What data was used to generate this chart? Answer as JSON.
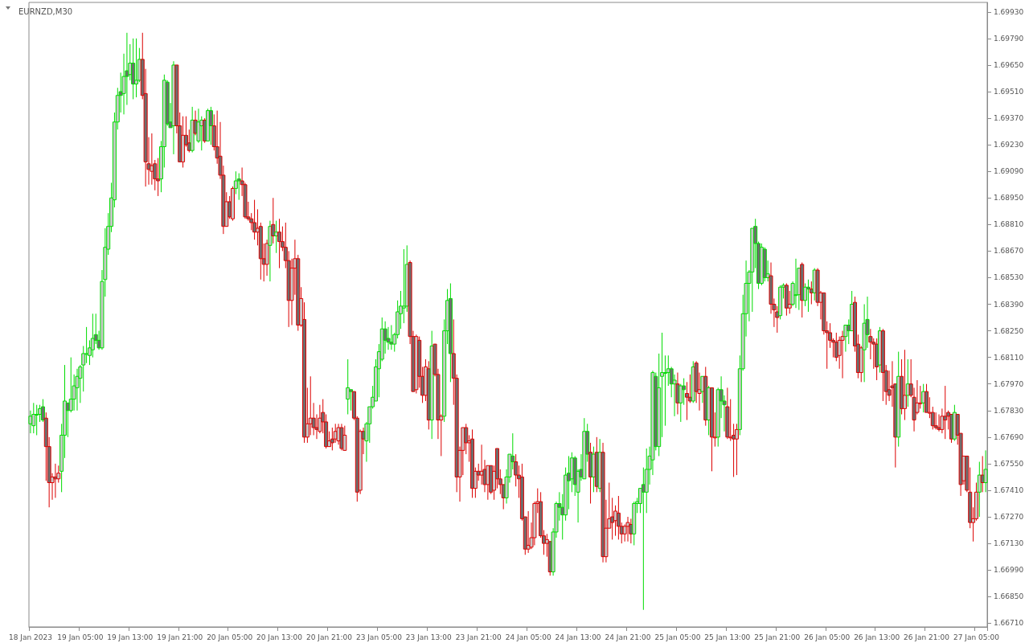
{
  "chart_data": {
    "type": "candlestick",
    "title": "EURNZD,M30",
    "categories": [
      "18 Jan 2023",
      null,
      null,
      null,
      null,
      null,
      null,
      null,
      null,
      null,
      null,
      null,
      null,
      null,
      null,
      null,
      "19 Jan 05:00",
      null,
      null,
      null,
      null,
      null,
      null,
      null,
      null,
      null,
      null,
      null,
      null,
      null,
      null,
      null,
      "19 Jan 13:00",
      null,
      null,
      null,
      null,
      null,
      null,
      null,
      null,
      null,
      null,
      null,
      null,
      null,
      null,
      null,
      "19 Jan 21:00",
      null,
      null,
      null,
      null,
      null,
      null,
      null,
      null,
      null,
      null,
      null,
      null,
      null,
      null,
      null,
      "20 Jan 05:00",
      null,
      null,
      null,
      null,
      null,
      null,
      null,
      null,
      null,
      null,
      null,
      null,
      null,
      null,
      null,
      "20 Jan 13:00",
      null,
      null,
      null,
      null,
      null,
      null,
      null,
      null,
      null,
      null,
      null,
      null,
      null,
      null,
      null,
      "20 Jan 21:00",
      null,
      null,
      null,
      null,
      null,
      null,
      null,
      null,
      null,
      null,
      null,
      null,
      null,
      null,
      null,
      "23 Jan 05:00",
      null,
      null,
      null,
      null,
      null,
      null,
      null,
      null,
      null,
      null,
      null,
      null,
      null,
      null,
      null,
      "23 Jan 13:00",
      null,
      null,
      null,
      null,
      null,
      null,
      null,
      null,
      null,
      null,
      null,
      null,
      null,
      null,
      null,
      "23 Jan 21:00",
      null,
      null,
      null,
      null,
      null,
      null,
      null,
      null,
      null,
      null,
      null,
      null,
      null,
      null,
      null,
      "24 Jan 05:00",
      null,
      null,
      null,
      null,
      null,
      null,
      null,
      null,
      null,
      null,
      null,
      null,
      null,
      null,
      null,
      "24 Jan 13:00",
      null,
      null,
      null,
      null,
      null,
      null,
      null,
      null,
      null,
      null,
      null,
      null,
      null,
      null,
      null,
      "24 Jan 21:00",
      null,
      null,
      null,
      null,
      null,
      null,
      null,
      null,
      null,
      null,
      null,
      null,
      null,
      null,
      null,
      "25 Jan 05:00",
      null,
      null,
      null,
      null,
      null,
      null,
      null,
      null,
      null,
      null,
      null,
      null,
      null,
      null,
      null,
      "25 Jan 13:00",
      null,
      null,
      null,
      null,
      null,
      null,
      null,
      null,
      null,
      null,
      null,
      null,
      null,
      null,
      null,
      "25 Jan 21:00",
      null,
      null,
      null,
      null,
      null,
      null,
      null,
      null,
      null,
      null,
      null,
      null,
      null,
      null,
      null,
      "26 Jan 05:00",
      null,
      null,
      null,
      null,
      null,
      null,
      null,
      null,
      null,
      null,
      null,
      null,
      null,
      null,
      null,
      "26 Jan 13:00",
      null,
      null,
      null,
      null,
      null,
      null,
      null,
      null,
      null,
      null,
      null,
      null,
      null,
      null,
      null,
      "26 Jan 21:00",
      null,
      null,
      null,
      null,
      null,
      null,
      null,
      null,
      null,
      null,
      null,
      null,
      null,
      null,
      null,
      "27 Jan 05:00",
      null,
      null,
      null
    ],
    "ylim": [
      1.6669,
      1.6998
    ],
    "yticks": [
      {
        "value": 1.6671,
        "label": "1.66710"
      },
      {
        "value": 1.6685,
        "label": "1.66850"
      },
      {
        "value": 1.6699,
        "label": "1.66990"
      },
      {
        "value": 1.6713,
        "label": "1.67130"
      },
      {
        "value": 1.6727,
        "label": "1.67270"
      },
      {
        "value": 1.6741,
        "label": "1.67410"
      },
      {
        "value": 1.6755,
        "label": "1.67550"
      },
      {
        "value": 1.6769,
        "label": "1.67690"
      },
      {
        "value": 1.6783,
        "label": "1.67830"
      },
      {
        "value": 1.6797,
        "label": "1.67970"
      },
      {
        "value": 1.6811,
        "label": "1.68110"
      },
      {
        "value": 1.6825,
        "label": "1.68250"
      },
      {
        "value": 1.6839,
        "label": "1.68390"
      },
      {
        "value": 1.6853,
        "label": "1.68530"
      },
      {
        "value": 1.6867,
        "label": "1.68670"
      },
      {
        "value": 1.6881,
        "label": "1.68810"
      },
      {
        "value": 1.6895,
        "label": "1.68950"
      },
      {
        "value": 1.6909,
        "label": "1.69090"
      },
      {
        "value": 1.6923,
        "label": "1.69230"
      },
      {
        "value": 1.6937,
        "label": "1.69370"
      },
      {
        "value": 1.6951,
        "label": "1.69510"
      },
      {
        "value": 1.6965,
        "label": "1.69650"
      },
      {
        "value": 1.6979,
        "label": "1.69790"
      },
      {
        "value": 1.6993,
        "label": "1.69930"
      }
    ],
    "ohlc": [
      [
        1.6776,
        1.6783,
        1.6771,
        1.678
      ],
      [
        1.6775,
        1.6787,
        1.6771,
        1.6781
      ],
      [
        1.6781,
        1.6786,
        1.677,
        1.6781
      ],
      [
        1.6781,
        1.6786,
        1.6777,
        1.6784
      ],
      [
        1.6785,
        1.6789,
        1.6777,
        1.6778
      ],
      [
        1.6779,
        1.6782,
        1.6746,
        1.6764
      ],
      [
        1.6764,
        1.6769,
        1.6732,
        1.6745
      ],
      [
        1.6745,
        1.675,
        1.6736,
        1.6748
      ],
      [
        1.6748,
        1.6755,
        1.6737,
        1.6747
      ],
      [
        1.6747,
        1.6754,
        1.6745,
        1.675
      ],
      [
        1.6751,
        1.6776,
        1.674,
        1.677
      ],
      [
        1.677,
        1.6807,
        1.6758,
        1.6788
      ],
      [
        1.6787,
        1.6787,
        1.6769,
        1.6783
      ],
      [
        1.6783,
        1.6811,
        1.6782,
        1.6789
      ],
      [
        1.6789,
        1.6802,
        1.6783,
        1.6796
      ],
      [
        1.6795,
        1.6805,
        1.6783,
        1.6801
      ],
      [
        1.68,
        1.6807,
        1.6787,
        1.6806
      ],
      [
        1.6807,
        1.6817,
        1.6793,
        1.6813
      ],
      [
        1.6813,
        1.6827,
        1.6808,
        1.6813
      ],
      [
        1.6812,
        1.682,
        1.6807,
        1.6816
      ],
      [
        1.6815,
        1.6834,
        1.6811,
        1.6821
      ],
      [
        1.6823,
        1.6834,
        1.6818,
        1.682
      ],
      [
        1.682,
        1.6825,
        1.6815,
        1.6816
      ],
      [
        1.6816,
        1.6857,
        1.6815,
        1.6851
      ],
      [
        1.6852,
        1.6879,
        1.6843,
        1.6869
      ],
      [
        1.6868,
        1.6887,
        1.6865,
        1.688
      ],
      [
        1.688,
        1.6903,
        1.6877,
        1.6895
      ],
      [
        1.6894,
        1.694,
        1.689,
        1.6935
      ],
      [
        1.6935,
        1.6953,
        1.6931,
        1.6949
      ],
      [
        1.6951,
        1.6961,
        1.694,
        1.6949
      ],
      [
        1.695,
        1.6971,
        1.6939,
        1.6959
      ],
      [
        1.6962,
        1.6982,
        1.6944,
        1.6959
      ],
      [
        1.696,
        1.6976,
        1.6957,
        1.6966
      ],
      [
        1.6966,
        1.6979,
        1.6947,
        1.6955
      ],
      [
        1.6955,
        1.6979,
        1.6948,
        1.6957
      ],
      [
        1.6957,
        1.6974,
        1.6956,
        1.6968
      ],
      [
        1.6968,
        1.6982,
        1.6947,
        1.6949
      ],
      [
        1.695,
        1.6963,
        1.6901,
        1.6914
      ],
      [
        1.6913,
        1.6927,
        1.6902,
        1.691
      ],
      [
        1.6909,
        1.6929,
        1.6902,
        1.6912
      ],
      [
        1.6913,
        1.6915,
        1.6899,
        1.6905
      ],
      [
        1.6905,
        1.6916,
        1.6896,
        1.6904
      ],
      [
        1.6905,
        1.6925,
        1.6898,
        1.6922
      ],
      [
        1.6922,
        1.696,
        1.6911,
        1.6957
      ],
      [
        1.6956,
        1.6957,
        1.6933,
        1.6934
      ],
      [
        1.6935,
        1.6945,
        1.6932,
        1.6932
      ],
      [
        1.6933,
        1.6967,
        1.6918,
        1.6965
      ],
      [
        1.6965,
        1.6965,
        1.6929,
        1.6933
      ],
      [
        1.6933,
        1.694,
        1.6914,
        1.6914
      ],
      [
        1.6914,
        1.6938,
        1.6911,
        1.6928
      ],
      [
        1.6928,
        1.6938,
        1.6922,
        1.6923
      ],
      [
        1.6924,
        1.6931,
        1.6919,
        1.692
      ],
      [
        1.692,
        1.6943,
        1.6919,
        1.6936
      ],
      [
        1.6936,
        1.6941,
        1.6928,
        1.6929
      ],
      [
        1.6925,
        1.6942,
        1.6924,
        1.6935
      ],
      [
        1.6933,
        1.6938,
        1.692,
        1.6936
      ],
      [
        1.6936,
        1.6937,
        1.6924,
        1.6925
      ],
      [
        1.6925,
        1.6942,
        1.6925,
        1.6941
      ],
      [
        1.6941,
        1.6943,
        1.6923,
        1.6933
      ],
      [
        1.6933,
        1.6939,
        1.692,
        1.6922
      ],
      [
        1.6922,
        1.6941,
        1.6913,
        1.6916
      ],
      [
        1.6917,
        1.6935,
        1.6905,
        1.6907
      ],
      [
        1.6907,
        1.6912,
        1.6876,
        1.688
      ],
      [
        1.688,
        1.6898,
        1.688,
        1.6893
      ],
      [
        1.6893,
        1.6896,
        1.6884,
        1.6885
      ],
      [
        1.6884,
        1.6901,
        1.6883,
        1.69
      ],
      [
        1.69,
        1.6909,
        1.6897,
        1.6904
      ],
      [
        1.6905,
        1.6908,
        1.6894,
        1.6904
      ],
      [
        1.6904,
        1.6911,
        1.6896,
        1.6902
      ],
      [
        1.6902,
        1.6903,
        1.6884,
        1.6885
      ],
      [
        1.6885,
        1.6893,
        1.6883,
        1.6884
      ],
      [
        1.6884,
        1.6887,
        1.6878,
        1.6882
      ],
      [
        1.6882,
        1.6894,
        1.6873,
        1.6877
      ],
      [
        1.6877,
        1.6889,
        1.687,
        1.6879
      ],
      [
        1.688,
        1.6882,
        1.6852,
        1.6863
      ],
      [
        1.6863,
        1.6871,
        1.6851,
        1.686
      ],
      [
        1.686,
        1.6873,
        1.6854,
        1.6871
      ],
      [
        1.687,
        1.6883,
        1.6851,
        1.688
      ],
      [
        1.6881,
        1.6895,
        1.6871,
        1.6875
      ],
      [
        1.6875,
        1.6883,
        1.6866,
        1.6877
      ],
      [
        1.6877,
        1.6884,
        1.6858,
        1.6872
      ],
      [
        1.6872,
        1.688,
        1.6867,
        1.6869
      ],
      [
        1.6869,
        1.6882,
        1.6858,
        1.6862
      ],
      [
        1.6862,
        1.6867,
        1.6827,
        1.6841
      ],
      [
        1.6841,
        1.6863,
        1.6828,
        1.6858
      ],
      [
        1.6858,
        1.6873,
        1.6844,
        1.6863
      ],
      [
        1.6863,
        1.6865,
        1.6825,
        1.6828
      ],
      [
        1.6828,
        1.6848,
        1.6827,
        1.6842
      ],
      [
        1.6831,
        1.684,
        1.6766,
        1.6769
      ],
      [
        1.6769,
        1.6795,
        1.6766,
        1.6776
      ],
      [
        1.6776,
        1.6801,
        1.677,
        1.6779
      ],
      [
        1.6779,
        1.6787,
        1.677,
        1.6774
      ],
      [
        1.6774,
        1.6781,
        1.6768,
        1.6773
      ],
      [
        1.6772,
        1.6786,
        1.6771,
        1.6779
      ],
      [
        1.6782,
        1.6789,
        1.6771,
        1.6777
      ],
      [
        1.6777,
        1.6781,
        1.6763,
        1.6764
      ],
      [
        1.6764,
        1.6772,
        1.6764,
        1.6767
      ],
      [
        1.6768,
        1.6774,
        1.6762,
        1.6766
      ],
      [
        1.6768,
        1.6776,
        1.6766,
        1.6772
      ],
      [
        1.6767,
        1.6776,
        1.6765,
        1.6774
      ],
      [
        1.6774,
        1.6776,
        1.6762,
        1.6763
      ],
      [
        1.6762,
        1.6775,
        1.6762,
        1.677
      ],
      [
        1.6789,
        1.681,
        1.6781,
        1.6795
      ],
      [
        1.6794,
        1.6794,
        1.6783,
        1.6793
      ],
      [
        1.6793,
        1.6793,
        1.6778,
        1.6779
      ],
      [
        1.6779,
        1.678,
        1.6735,
        1.674
      ],
      [
        1.6741,
        1.6773,
        1.6739,
        1.6772
      ],
      [
        1.6772,
        1.6774,
        1.676,
        1.6768
      ],
      [
        1.6767,
        1.6777,
        1.6756,
        1.6776
      ],
      [
        1.6776,
        1.6785,
        1.6766,
        1.6785
      ],
      [
        1.6785,
        1.6796,
        1.6784,
        1.679
      ],
      [
        1.6788,
        1.681,
        1.6788,
        1.6806
      ],
      [
        1.6805,
        1.6818,
        1.679,
        1.6814
      ],
      [
        1.681,
        1.6832,
        1.6809,
        1.6826
      ],
      [
        1.6826,
        1.683,
        1.6813,
        1.682
      ],
      [
        1.6821,
        1.6827,
        1.6815,
        1.6819
      ],
      [
        1.6819,
        1.6828,
        1.6815,
        1.6818
      ],
      [
        1.6818,
        1.6824,
        1.6814,
        1.6823
      ],
      [
        1.6823,
        1.6841,
        1.6821,
        1.6835
      ],
      [
        1.6834,
        1.6846,
        1.6826,
        1.6838
      ],
      [
        1.6837,
        1.6868,
        1.6829,
        1.6838
      ],
      [
        1.6838,
        1.687,
        1.6835,
        1.686
      ],
      [
        1.6861,
        1.6862,
        1.6818,
        1.6822
      ],
      [
        1.6822,
        1.6825,
        1.6793,
        1.6793
      ],
      [
        1.6794,
        1.6823,
        1.6792,
        1.6822
      ],
      [
        1.682,
        1.6822,
        1.6795,
        1.6801
      ],
      [
        1.6801,
        1.6806,
        1.6787,
        1.6791
      ],
      [
        1.6791,
        1.681,
        1.6788,
        1.6806
      ],
      [
        1.6805,
        1.6809,
        1.6773,
        1.6778
      ],
      [
        1.6778,
        1.6825,
        1.6768,
        1.6817
      ],
      [
        1.6818,
        1.6818,
        1.6801,
        1.6802
      ],
      [
        1.6802,
        1.6805,
        1.6768,
        1.6778
      ],
      [
        1.6778,
        1.6781,
        1.6759,
        1.678
      ],
      [
        1.678,
        1.6831,
        1.6777,
        1.6825
      ],
      [
        1.6825,
        1.6847,
        1.6818,
        1.6841
      ],
      [
        1.6842,
        1.685,
        1.6798,
        1.6813
      ],
      [
        1.6813,
        1.6831,
        1.6786,
        1.68
      ],
      [
        1.68,
        1.6802,
        1.674,
        1.6748
      ],
      [
        1.6748,
        1.6764,
        1.6735,
        1.6762
      ],
      [
        1.6762,
        1.6774,
        1.6749,
        1.6774
      ],
      [
        1.6774,
        1.6776,
        1.676,
        1.6766
      ],
      [
        1.6766,
        1.677,
        1.6756,
        1.6767
      ],
      [
        1.6768,
        1.6773,
        1.6737,
        1.6742
      ],
      [
        1.6742,
        1.6753,
        1.6737,
        1.6751
      ],
      [
        1.6751,
        1.6755,
        1.6746,
        1.6749
      ],
      [
        1.6749,
        1.6765,
        1.6744,
        1.6751
      ],
      [
        1.6752,
        1.6757,
        1.674,
        1.6744
      ],
      [
        1.6744,
        1.6754,
        1.6736,
        1.6754
      ],
      [
        1.6754,
        1.6754,
        1.6739,
        1.674
      ],
      [
        1.6741,
        1.6754,
        1.6736,
        1.6751
      ],
      [
        1.6763,
        1.6763,
        1.6742,
        1.6747
      ],
      [
        1.6747,
        1.6752,
        1.6739,
        1.6744
      ],
      [
        1.6744,
        1.6744,
        1.6731,
        1.6737
      ],
      [
        1.6737,
        1.6752,
        1.6734,
        1.6748
      ],
      [
        1.6748,
        1.676,
        1.6745,
        1.676
      ],
      [
        1.6759,
        1.6771,
        1.6752,
        1.6756
      ],
      [
        1.6756,
        1.676,
        1.6743,
        1.6749
      ],
      [
        1.6749,
        1.6754,
        1.6737,
        1.6747
      ],
      [
        1.6748,
        1.6755,
        1.6725,
        1.6726
      ],
      [
        1.6727,
        1.6727,
        1.6707,
        1.671
      ],
      [
        1.671,
        1.673,
        1.6708,
        1.6712
      ],
      [
        1.6711,
        1.6724,
        1.671,
        1.6716
      ],
      [
        1.6716,
        1.6735,
        1.6712,
        1.6734
      ],
      [
        1.6734,
        1.6742,
        1.6729,
        1.6735
      ],
      [
        1.6735,
        1.674,
        1.6716,
        1.6717
      ],
      [
        1.6717,
        1.672,
        1.6707,
        1.6713
      ],
      [
        1.6713,
        1.6718,
        1.6706,
        1.6715
      ],
      [
        1.6714,
        1.6714,
        1.6696,
        1.6698
      ],
      [
        1.6698,
        1.6721,
        1.6696,
        1.6719
      ],
      [
        1.6719,
        1.6735,
        1.6716,
        1.6734
      ],
      [
        1.6734,
        1.674,
        1.6725,
        1.6732
      ],
      [
        1.6732,
        1.6739,
        1.6715,
        1.6728
      ],
      [
        1.6728,
        1.6753,
        1.6725,
        1.6749
      ],
      [
        1.675,
        1.6759,
        1.6731,
        1.6746
      ],
      [
        1.6747,
        1.6761,
        1.674,
        1.6758
      ],
      [
        1.6758,
        1.6759,
        1.6738,
        1.6744
      ],
      [
        1.674,
        1.6752,
        1.6724,
        1.6751
      ],
      [
        1.6752,
        1.676,
        1.6746,
        1.6748
      ],
      [
        1.6747,
        1.6779,
        1.6747,
        1.6772
      ],
      [
        1.6772,
        1.6776,
        1.6756,
        1.676
      ],
      [
        1.6761,
        1.6766,
        1.6734,
        1.6748
      ],
      [
        1.6748,
        1.6764,
        1.674,
        1.676
      ],
      [
        1.6761,
        1.6769,
        1.674,
        1.6743
      ],
      [
        1.6742,
        1.6768,
        1.674,
        1.6761
      ],
      [
        1.6761,
        1.6766,
        1.6703,
        1.6706
      ],
      [
        1.6706,
        1.6736,
        1.6703,
        1.6721
      ],
      [
        1.6721,
        1.6745,
        1.6721,
        1.6726
      ],
      [
        1.6727,
        1.6737,
        1.6715,
        1.6724
      ],
      [
        1.6725,
        1.6733,
        1.6717,
        1.673
      ],
      [
        1.6729,
        1.6738,
        1.6715,
        1.6722
      ],
      [
        1.6722,
        1.6724,
        1.6713,
        1.6718
      ],
      [
        1.6718,
        1.6723,
        1.6714,
        1.6722
      ],
      [
        1.6722,
        1.6727,
        1.6714,
        1.6724
      ],
      [
        1.6723,
        1.6726,
        1.6713,
        1.6718
      ],
      [
        1.6718,
        1.6735,
        1.6712,
        1.6734
      ],
      [
        1.6734,
        1.6737,
        1.6729,
        1.6735
      ],
      [
        1.6734,
        1.6742,
        1.6729,
        1.6742
      ],
      [
        1.6744,
        1.6753,
        1.6678,
        1.674
      ],
      [
        1.674,
        1.6763,
        1.6729,
        1.6752
      ],
      [
        1.6752,
        1.6764,
        1.6744,
        1.6759
      ],
      [
        1.6757,
        1.6804,
        1.6749,
        1.6803
      ],
      [
        1.6801,
        1.6803,
        1.6762,
        1.6764
      ],
      [
        1.6764,
        1.6813,
        1.6759,
        1.6795
      ],
      [
        1.6801,
        1.6824,
        1.6769,
        1.6803
      ],
      [
        1.6803,
        1.6812,
        1.6775,
        1.6803
      ],
      [
        1.6803,
        1.6812,
        1.6796,
        1.6805
      ],
      [
        1.6805,
        1.6806,
        1.679,
        1.6797
      ],
      [
        1.6797,
        1.6802,
        1.678,
        1.6799
      ],
      [
        1.6797,
        1.6803,
        1.6781,
        1.6787
      ],
      [
        1.6787,
        1.6797,
        1.6777,
        1.6796
      ],
      [
        1.6796,
        1.68,
        1.6786,
        1.6794
      ],
      [
        1.6792,
        1.6798,
        1.6778,
        1.679
      ],
      [
        1.679,
        1.6802,
        1.6787,
        1.6788
      ],
      [
        1.6788,
        1.6809,
        1.6787,
        1.6806
      ],
      [
        1.6808,
        1.6809,
        1.6787,
        1.6793
      ],
      [
        1.6792,
        1.6803,
        1.6783,
        1.6794
      ],
      [
        1.6793,
        1.6801,
        1.6787,
        1.6801
      ],
      [
        1.6801,
        1.6806,
        1.6775,
        1.6778
      ],
      [
        1.6778,
        1.6796,
        1.677,
        1.6795
      ],
      [
        1.6795,
        1.6795,
        1.6751,
        1.6769
      ],
      [
        1.6769,
        1.6782,
        1.6764,
        1.6769
      ],
      [
        1.6769,
        1.6795,
        1.6764,
        1.6794
      ],
      [
        1.6794,
        1.6801,
        1.6779,
        1.6788
      ],
      [
        1.6788,
        1.6791,
        1.6772,
        1.6786
      ],
      [
        1.6785,
        1.6795,
        1.6768,
        1.6769
      ],
      [
        1.6769,
        1.6789,
        1.6767,
        1.6769
      ],
      [
        1.677,
        1.6776,
        1.6748,
        1.6768
      ],
      [
        1.6768,
        1.6776,
        1.6749,
        1.6773
      ],
      [
        1.6773,
        1.6812,
        1.677,
        1.6805
      ],
      [
        1.6805,
        1.6844,
        1.6804,
        1.6834
      ],
      [
        1.6834,
        1.6862,
        1.6822,
        1.685
      ],
      [
        1.685,
        1.6857,
        1.683,
        1.6856
      ],
      [
        1.6856,
        1.6879,
        1.6835,
        1.6879
      ],
      [
        1.688,
        1.6884,
        1.6858,
        1.6871
      ],
      [
        1.6871,
        1.6872,
        1.6847,
        1.685
      ],
      [
        1.685,
        1.6871,
        1.6849,
        1.6869
      ],
      [
        1.6868,
        1.6869,
        1.6851,
        1.6853
      ],
      [
        1.6853,
        1.6862,
        1.6851,
        1.6855
      ],
      [
        1.6854,
        1.6861,
        1.6834,
        1.6839
      ],
      [
        1.6839,
        1.6842,
        1.6827,
        1.6836
      ],
      [
        1.6835,
        1.6838,
        1.6824,
        1.6832
      ],
      [
        1.6833,
        1.6849,
        1.6831,
        1.6848
      ],
      [
        1.6848,
        1.685,
        1.6842,
        1.6849
      ],
      [
        1.6849,
        1.685,
        1.6833,
        1.6837
      ],
      [
        1.6837,
        1.6846,
        1.6834,
        1.6839
      ],
      [
        1.6839,
        1.6851,
        1.6838,
        1.685
      ],
      [
        1.6844,
        1.6863,
        1.6837,
        1.6844
      ],
      [
        1.6844,
        1.6858,
        1.6836,
        1.6858
      ],
      [
        1.686,
        1.6861,
        1.6832,
        1.6841
      ],
      [
        1.6841,
        1.685,
        1.6838,
        1.6848
      ],
      [
        1.6848,
        1.6852,
        1.6835,
        1.6847
      ],
      [
        1.6847,
        1.6851,
        1.6839,
        1.6845
      ],
      [
        1.6845,
        1.6858,
        1.6841,
        1.6857
      ],
      [
        1.6857,
        1.6858,
        1.6838,
        1.684
      ],
      [
        1.684,
        1.6846,
        1.6831,
        1.6845
      ],
      [
        1.6845,
        1.6845,
        1.6823,
        1.6825
      ],
      [
        1.6825,
        1.683,
        1.6805,
        1.6824
      ],
      [
        1.6824,
        1.6829,
        1.6816,
        1.682
      ],
      [
        1.682,
        1.6821,
        1.6811,
        1.6819
      ],
      [
        1.6819,
        1.6824,
        1.6809,
        1.6811
      ],
      [
        1.6812,
        1.6822,
        1.6805,
        1.682
      ],
      [
        1.682,
        1.6825,
        1.68,
        1.6822
      ],
      [
        1.6822,
        1.6828,
        1.6814,
        1.6828
      ],
      [
        1.6828,
        1.6831,
        1.6818,
        1.6825
      ],
      [
        1.6825,
        1.6846,
        1.6825,
        1.6839
      ],
      [
        1.684,
        1.6843,
        1.6814,
        1.6817
      ],
      [
        1.6818,
        1.6823,
        1.68,
        1.6803
      ],
      [
        1.6803,
        1.6817,
        1.6798,
        1.6816
      ],
      [
        1.6815,
        1.6839,
        1.6798,
        1.6829
      ],
      [
        1.6831,
        1.6843,
        1.6816,
        1.6823
      ],
      [
        1.6822,
        1.6826,
        1.681,
        1.6819
      ],
      [
        1.6819,
        1.6821,
        1.6805,
        1.6818
      ],
      [
        1.6818,
        1.6821,
        1.6799,
        1.6806
      ],
      [
        1.6807,
        1.6827,
        1.6803,
        1.6825
      ],
      [
        1.6825,
        1.6826,
        1.6788,
        1.6803
      ],
      [
        1.6804,
        1.6807,
        1.6786,
        1.6793
      ],
      [
        1.6794,
        1.6804,
        1.6788,
        1.6791
      ],
      [
        1.6796,
        1.6809,
        1.6785,
        1.6795
      ],
      [
        1.6797,
        1.6797,
        1.6753,
        1.6769
      ],
      [
        1.6769,
        1.6814,
        1.6764,
        1.6801
      ],
      [
        1.6801,
        1.681,
        1.6781,
        1.6784
      ],
      [
        1.6784,
        1.6815,
        1.6778,
        1.6791
      ],
      [
        1.6791,
        1.681,
        1.6785,
        1.6797
      ],
      [
        1.6797,
        1.681,
        1.679,
        1.6791
      ],
      [
        1.679,
        1.6795,
        1.6772,
        1.6778
      ],
      [
        1.6782,
        1.6799,
        1.6781,
        1.6787
      ],
      [
        1.6787,
        1.6796,
        1.6784,
        1.6787
      ],
      [
        1.6787,
        1.6797,
        1.6782,
        1.6793
      ],
      [
        1.6793,
        1.6797,
        1.6782,
        1.6782
      ],
      [
        1.6782,
        1.679,
        1.6779,
        1.6782
      ],
      [
        1.6782,
        1.6785,
        1.6773,
        1.6775
      ],
      [
        1.6775,
        1.6782,
        1.6773,
        1.6774
      ],
      [
        1.6774,
        1.6781,
        1.6772,
        1.6773
      ],
      [
        1.6773,
        1.6784,
        1.6771,
        1.678
      ],
      [
        1.678,
        1.6796,
        1.6768,
        1.6778
      ],
      [
        1.6782,
        1.6783,
        1.6773,
        1.678
      ],
      [
        1.6781,
        1.6781,
        1.6766,
        1.6768
      ],
      [
        1.6768,
        1.6786,
        1.6767,
        1.6782
      ],
      [
        1.6781,
        1.6781,
        1.6765,
        1.677
      ],
      [
        1.6771,
        1.6771,
        1.6738,
        1.6744
      ],
      [
        1.6746,
        1.6759,
        1.6744,
        1.6759
      ],
      [
        1.6759,
        1.6759,
        1.674,
        1.6741
      ],
      [
        1.674,
        1.6753,
        1.6721,
        1.6724
      ],
      [
        1.6724,
        1.6732,
        1.6714,
        1.6726
      ],
      [
        1.6726,
        1.6745,
        1.6725,
        1.674
      ],
      [
        1.674,
        1.6756,
        1.6727,
        1.6749
      ],
      [
        1.6749,
        1.6759,
        1.674,
        1.6745
      ],
      [
        1.6745,
        1.6762,
        1.674,
        1.6752
      ]
    ],
    "colors": [
      "#00dc00",
      "#00dc00",
      "#00dc00",
      "#00dc00",
      "#00dc00",
      "#dc0000",
      "#dc0000",
      "#dc0000",
      "#dc0000",
      "#dc0000",
      "#00dc00",
      "#00dc00",
      "#00dc00",
      "#00dc00",
      "#00dc00",
      "#00dc00",
      "#00dc00",
      "#00dc00",
      "#00dc00",
      "#00dc00",
      "#00dc00",
      "#00dc00",
      "#00dc00",
      "#00dc00",
      "#00dc00",
      "#00dc00",
      "#00dc00",
      "#00dc00",
      "#00dc00",
      "#00dc00",
      "#00dc00",
      "#00dc00",
      "#00dc00",
      "#00dc00",
      "#00dc00",
      "#00dc00",
      "#dc0000",
      "#dc0000",
      "#dc0000",
      "#dc0000",
      "#dc0000",
      "#dc0000",
      "#00dc00",
      "#00dc00",
      "#00dc00",
      "#00dc00",
      "#00dc00",
      "#dc0000",
      "#dc0000",
      "#dc0000",
      "#dc0000",
      "#dc0000",
      "#00dc00",
      "#dc0000",
      "#00dc00",
      "#00dc00",
      "#dc0000",
      "#00dc00",
      "#00dc00",
      "#dc0000",
      "#dc0000",
      "#dc0000",
      "#dc0000",
      "#dc0000",
      "#dc0000",
      "#dc0000",
      "#00dc00",
      "#00dc00",
      "#dc0000",
      "#dc0000",
      "#dc0000",
      "#dc0000",
      "#dc0000",
      "#dc0000",
      "#dc0000",
      "#dc0000",
      "#dc0000",
      "#00dc00",
      "#dc0000",
      "#00dc00",
      "#dc0000",
      "#dc0000",
      "#dc0000",
      "#dc0000",
      "#dc0000",
      "#dc0000",
      "#dc0000",
      "#dc0000",
      "#dc0000",
      "#dc0000",
      "#dc0000",
      "#dc0000",
      "#dc0000",
      "#dc0000",
      "#dc0000",
      "#dc0000",
      "#dc0000",
      "#dc0000",
      "#dc0000",
      "#dc0000",
      "#dc0000",
      "#dc0000",
      "#00dc00",
      "#00dc00",
      "#dc0000",
      "#dc0000",
      "#dc0000",
      "#dc0000",
      "#00dc00",
      "#00dc00",
      "#00dc00",
      "#00dc00",
      "#00dc00",
      "#00dc00",
      "#00dc00",
      "#00dc00",
      "#00dc00",
      "#00dc00",
      "#00dc00",
      "#00dc00",
      "#00dc00",
      "#00dc00",
      "#dc0000",
      "#dc0000",
      "#dc0000",
      "#dc0000",
      "#dc0000",
      "#dc0000",
      "#dc0000",
      "#00dc00",
      "#dc0000",
      "#dc0000",
      "#dc0000",
      "#00dc00",
      "#00dc00",
      "#00dc00",
      "#dc0000",
      "#dc0000",
      "#dc0000",
      "#dc0000",
      "#dc0000",
      "#dc0000",
      "#dc0000",
      "#dc0000",
      "#dc0000",
      "#dc0000",
      "#dc0000",
      "#dc0000",
      "#dc0000",
      "#dc0000",
      "#dc0000",
      "#dc0000",
      "#dc0000",
      "#00dc00",
      "#00dc00",
      "#00dc00",
      "#dc0000",
      "#dc0000",
      "#dc0000",
      "#dc0000",
      "#dc0000",
      "#dc0000",
      "#dc0000",
      "#dc0000",
      "#dc0000",
      "#dc0000",
      "#dc0000",
      "#dc0000",
      "#00dc00",
      "#00dc00",
      "#00dc00",
      "#00dc00",
      "#00dc00",
      "#00dc00",
      "#00dc00",
      "#00dc00",
      "#00dc00",
      "#00dc00",
      "#00dc00",
      "#00dc00",
      "#dc0000",
      "#00dc00",
      "#dc0000",
      "#00dc00",
      "#dc0000",
      "#dc0000",
      "#dc0000",
      "#dc0000",
      "#dc0000",
      "#dc0000",
      "#dc0000",
      "#dc0000",
      "#dc0000",
      "#dc0000",
      "#00dc00",
      "#00dc00",
      "#00dc00",
      "#00dc00",
      "#00dc00",
      "#00dc00",
      "#00dc00",
      "#00dc00",
      "#00dc00",
      "#00dc00",
      "#00dc00",
      "#00dc00",
      "#00dc00",
      "#00dc00",
      "#dc0000",
      "#00dc00",
      "#00dc00",
      "#dc0000",
      "#dc0000",
      "#00dc00",
      "#dc0000",
      "#dc0000",
      "#00dc00",
      "#dc0000",
      "#00dc00",
      "#dc0000",
      "#dc0000",
      "#00dc00",
      "#00dc00",
      "#00dc00",
      "#dc0000",
      "#dc0000",
      "#dc0000",
      "#dc0000",
      "#00dc00",
      "#00dc00",
      "#00dc00",
      "#00dc00",
      "#00dc00",
      "#00dc00",
      "#00dc00",
      "#00dc00",
      "#00dc00",
      "#00dc00",
      "#dc0000",
      "#dc0000",
      "#dc0000",
      "#00dc00",
      "#00dc00",
      "#dc0000",
      "#dc0000",
      "#00dc00",
      "#00dc00",
      "#00dc00",
      "#dc0000",
      "#00dc00",
      "#00dc00",
      "#dc0000",
      "#00dc00",
      "#dc0000",
      "#dc0000",
      "#dc0000",
      "#dc0000",
      "#dc0000",
      "#dc0000",
      "#dc0000",
      "#dc0000",
      "#dc0000",
      "#00dc00",
      "#00dc00",
      "#00dc00",
      "#dc0000",
      "#dc0000",
      "#dc0000",
      "#00dc00",
      "#00dc00",
      "#dc0000",
      "#dc0000",
      "#dc0000",
      "#00dc00",
      "#dc0000",
      "#dc0000",
      "#dc0000",
      "#dc0000",
      "#dc0000",
      "#00dc00",
      "#dc0000",
      "#dc0000",
      "#00dc00",
      "#dc0000",
      "#dc0000",
      "#dc0000",
      "#dc0000",
      "#00dc00",
      "#dc0000",
      "#dc0000",
      "#dc0000",
      "#dc0000",
      "#dc0000",
      "#dc0000",
      "#dc0000",
      "#dc0000",
      "#dc0000",
      "#00dc00",
      "#dc0000",
      "#dc0000",
      "#dc0000",
      "#dc0000",
      "#dc0000",
      "#dc0000",
      "#dc0000",
      "#00dc00",
      "#dc0000",
      "#00dc00"
    ]
  }
}
